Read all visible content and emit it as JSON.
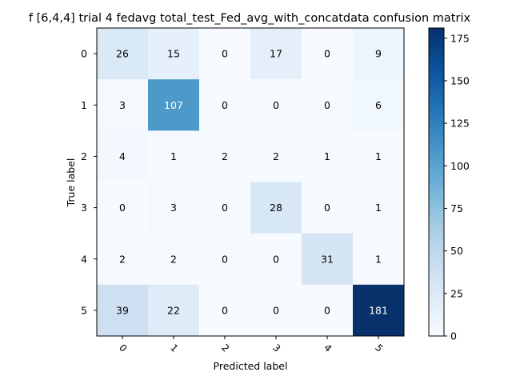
{
  "chart_data": {
    "type": "heatmap",
    "title": "f [6,4,4] trial 4 fedavg total_test_Fed_avg_with_concatdata confusion matrix",
    "xlabel": "Predicted label",
    "ylabel": "True label",
    "x_ticks": [
      "0",
      "1",
      "2",
      "3",
      "4",
      "5"
    ],
    "y_ticks": [
      "0",
      "1",
      "2",
      "3",
      "4",
      "5"
    ],
    "matrix": [
      [
        26,
        15,
        0,
        17,
        0,
        9
      ],
      [
        3,
        107,
        0,
        0,
        0,
        6
      ],
      [
        4,
        1,
        2,
        2,
        1,
        1
      ],
      [
        0,
        3,
        0,
        28,
        0,
        1
      ],
      [
        2,
        2,
        0,
        0,
        31,
        1
      ],
      [
        39,
        22,
        0,
        0,
        0,
        181
      ]
    ],
    "colormap": "Blues",
    "vmin": 0,
    "vmax": 181,
    "colorbar_ticks": [
      0,
      25,
      50,
      75,
      100,
      125,
      150,
      175
    ],
    "colors": {
      "low": "#f7fbff",
      "high": "#08306b",
      "text_dark": "#000000",
      "text_light": "#ffffff"
    }
  }
}
